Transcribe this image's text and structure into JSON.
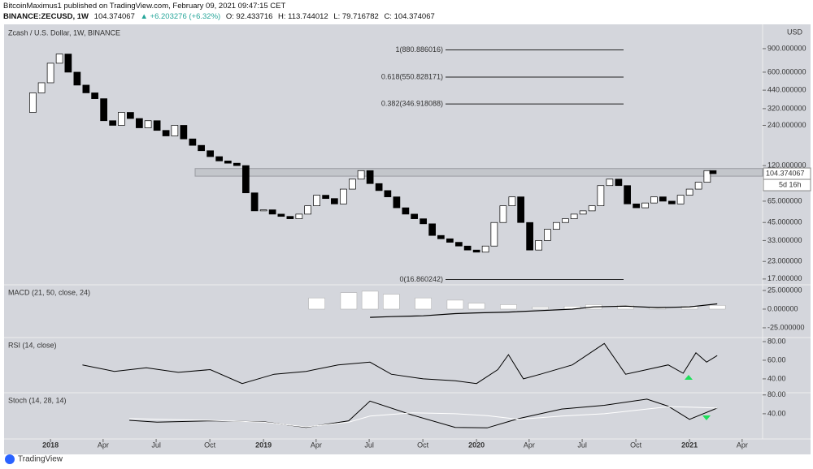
{
  "header": {
    "line1": "BitcoinMaximus1 published on TradingView.com, February 09, 2021 09:47:15 CET",
    "symbol": "BINANCE:ZECUSD, 1W",
    "price": "104.374067",
    "change": "▲ +6.203276 (+6.32%)",
    "open": "O: 92.433716",
    "high": "H: 113.744012",
    "low": "L: 79.716782",
    "close": "C: 104.374067"
  },
  "footer": {
    "brand": "TradingView"
  },
  "chart_data": [
    {
      "type": "candlestick",
      "title": "Zcash / U.S. Dollar, 1W, BINANCE",
      "unit": "USD",
      "log_scale": true,
      "xlim": [
        2017.782,
        2021.343
      ],
      "ylim": [
        15.6,
        1330
      ],
      "yticks": [
        {
          "value": 900,
          "label": "900.000000"
        },
        {
          "value": 600,
          "label": "600.000000"
        },
        {
          "value": 440,
          "label": "440.000000"
        },
        {
          "value": 320,
          "label": "320.000000"
        },
        {
          "value": 240,
          "label": "240.000000"
        },
        {
          "value": 120,
          "label": "120.000000"
        },
        {
          "value": 65,
          "label": "65.000000"
        },
        {
          "value": 45,
          "label": "45.000000"
        },
        {
          "value": 33,
          "label": "33.000000"
        },
        {
          "value": 23,
          "label": "23.000000"
        },
        {
          "value": 17,
          "label": "17.000000"
        }
      ],
      "xticks": [
        {
          "value": 2018.0,
          "label": "2018"
        },
        {
          "value": 2018.247,
          "label": "Apr"
        },
        {
          "value": 2018.496,
          "label": "Jul"
        },
        {
          "value": 2018.748,
          "label": "Oct"
        },
        {
          "value": 2019.0,
          "label": "2019"
        },
        {
          "value": 2019.247,
          "label": "Apr"
        },
        {
          "value": 2019.496,
          "label": "Jul"
        },
        {
          "value": 2019.748,
          "label": "Oct"
        },
        {
          "value": 2020.0,
          "label": "2020"
        },
        {
          "value": 2020.247,
          "label": "Apr"
        },
        {
          "value": 2020.496,
          "label": "Jul"
        },
        {
          "value": 2020.748,
          "label": "Oct"
        },
        {
          "value": 2021.0,
          "label": "2021"
        },
        {
          "value": 2021.247,
          "label": "Apr"
        }
      ],
      "x": [
        2017.875,
        2017.917,
        2017.958,
        2018.0,
        2018.042,
        2018.083,
        2018.125,
        2018.167,
        2018.208,
        2018.25,
        2018.292,
        2018.333,
        2018.375,
        2018.417,
        2018.458,
        2018.5,
        2018.542,
        2018.583,
        2018.625,
        2018.667,
        2018.708,
        2018.75,
        2018.792,
        2018.833,
        2018.875,
        2018.917,
        2018.958,
        2019.0,
        2019.042,
        2019.083,
        2019.125,
        2019.167,
        2019.208,
        2019.25,
        2019.292,
        2019.333,
        2019.375,
        2019.417,
        2019.458,
        2019.5,
        2019.542,
        2019.583,
        2019.625,
        2019.667,
        2019.708,
        2019.75,
        2019.792,
        2019.833,
        2019.875,
        2019.917,
        2019.958,
        2020.0,
        2020.042,
        2020.083,
        2020.125,
        2020.167,
        2020.208,
        2020.25,
        2020.292,
        2020.333,
        2020.375,
        2020.417,
        2020.458,
        2020.5,
        2020.542,
        2020.583,
        2020.625,
        2020.667,
        2020.708,
        2020.75,
        2020.792,
        2020.833,
        2020.875,
        2020.917,
        2020.958,
        2021.0,
        2021.042,
        2021.083,
        2021.11
      ],
      "values": [
        300,
        420,
        500,
        700,
        820,
        600,
        480,
        420,
        380,
        260,
        240,
        300,
        270,
        230,
        260,
        220,
        200,
        240,
        190,
        170,
        155,
        140,
        130,
        125,
        120,
        75,
        55,
        56,
        52,
        50,
        48,
        52,
        60,
        72,
        68,
        62,
        80,
        95,
        110,
        88,
        78,
        70,
        58,
        52,
        48,
        44,
        36,
        34,
        32,
        30,
        28,
        27,
        30,
        45,
        60,
        70,
        45,
        28,
        33,
        40,
        45,
        48,
        52,
        55,
        60,
        85,
        95,
        85,
        62,
        58,
        63,
        70,
        65,
        62,
        72,
        80,
        90,
        110,
        104.374067
      ],
      "zone": [
        100,
        114
      ],
      "last": {
        "value": 104.374067,
        "label": "104.374067"
      },
      "countdown": "5d 16h",
      "fib_levels": [
        {
          "value": 880.886016,
          "label": "1(880.886016)"
        },
        {
          "value": 550.828171,
          "label": "0.618(550.828171)"
        },
        {
          "value": 346.918088,
          "label": "0.382(346.918088)"
        },
        {
          "value": 16.860242,
          "label": "0(16.860242)"
        }
      ]
    },
    {
      "type": "macd",
      "title": "MACD (21, 50, close, 24)",
      "ylim": [
        -37,
        31.5
      ],
      "yticks": [
        {
          "value": 25,
          "label": "25.000000"
        },
        {
          "value": 0,
          "label": "0.000000"
        },
        {
          "value": -25,
          "label": "-25.000000"
        }
      ],
      "x": [
        2019.25,
        2019.4,
        2019.5,
        2019.6,
        2019.75,
        2019.9,
        2020.0,
        2020.15,
        2020.3,
        2020.45,
        2020.55,
        2020.7,
        2020.85,
        2021.0,
        2021.13
      ],
      "series": [
        {
          "name": "MACD",
          "color": "#000000",
          "values": [
            null,
            null,
            -11,
            -10,
            -9,
            -6,
            -5,
            -4,
            -2,
            0,
            3,
            4,
            2,
            3,
            7
          ]
        },
        {
          "name": "Histogram",
          "color": "#ffffff",
          "values": [
            15,
            22,
            24,
            20,
            15,
            12,
            8,
            6,
            3,
            4,
            6,
            5,
            3,
            4,
            5
          ]
        }
      ]
    },
    {
      "type": "line",
      "title": "RSI (14, close)",
      "ylim": [
        26,
        83.5
      ],
      "yticks": [
        {
          "value": 80,
          "label": "80.00"
        },
        {
          "value": 60,
          "label": "60.00"
        },
        {
          "value": 40,
          "label": "40.00"
        }
      ],
      "x": [
        2018.15,
        2018.3,
        2018.45,
        2018.6,
        2018.75,
        2018.9,
        2019.05,
        2019.2,
        2019.35,
        2019.5,
        2019.6,
        2019.75,
        2019.9,
        2020.0,
        2020.1,
        2020.15,
        2020.22,
        2020.3,
        2020.45,
        2020.6,
        2020.7,
        2020.8,
        2020.9,
        2020.97,
        2021.03,
        2021.08,
        2021.13
      ],
      "series": [
        {
          "name": "RSI",
          "color": "#000000",
          "values": [
            55,
            48,
            52,
            47,
            50,
            35,
            45,
            48,
            55,
            58,
            45,
            40,
            38,
            35,
            50,
            66,
            40,
            45,
            55,
            78,
            45,
            50,
            55,
            46,
            68,
            58,
            65
          ]
        }
      ]
    },
    {
      "type": "line",
      "title": "Stoch (14, 28, 14)",
      "ylim": [
        -12,
        83
      ],
      "yticks": [
        {
          "value": 80,
          "label": "80.00"
        },
        {
          "value": 40,
          "label": "40.00"
        }
      ],
      "x": [
        2018.37,
        2018.5,
        2018.75,
        2019.0,
        2019.2,
        2019.4,
        2019.5,
        2019.7,
        2019.9,
        2020.05,
        2020.2,
        2020.4,
        2020.6,
        2020.8,
        2020.9,
        2021.0,
        2021.13
      ],
      "series": [
        {
          "name": "%K",
          "color": "#000000",
          "values": [
            26,
            22,
            25,
            23,
            11,
            25,
            67,
            37,
            11,
            10,
            30,
            50,
            58,
            71,
            56,
            28,
            52
          ]
        },
        {
          "name": "%D",
          "color": "#ffffff",
          "values": [
            30,
            28,
            26,
            22,
            12,
            22,
            35,
            42,
            40,
            36,
            28,
            35,
            40,
            50,
            55,
            54,
            52
          ]
        }
      ]
    }
  ]
}
